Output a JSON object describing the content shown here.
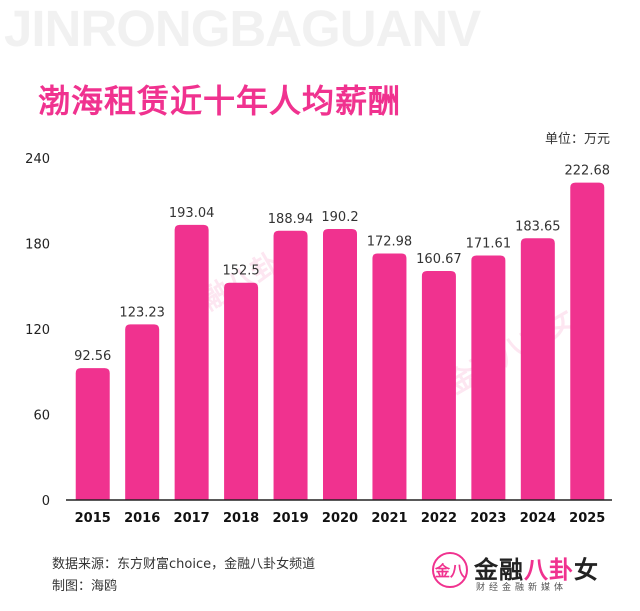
{
  "header": {
    "banner_text": "JINRONGBAGUANV",
    "title": "渤海租赁近十年人均薪酬",
    "unit": "单位：万元"
  },
  "footer": {
    "source": "数据来源：东方财富choice，金融八卦女频道",
    "author": "制图：海鸥"
  },
  "logo": {
    "mark": "金八",
    "name_part1": "金融",
    "name_part2": "八卦",
    "name_part3": "女",
    "subtitle": "财经金融新媒体"
  },
  "watermarks": [
    "金融八卦女",
    "金融八卦女"
  ],
  "colors": {
    "bar": "#f0328f",
    "title": "#f0328f",
    "axis": "#222222"
  },
  "chart_data": {
    "type": "bar",
    "title": "渤海租赁近十年人均薪酬",
    "ylabel": "单位：万元",
    "xlabel": "",
    "categories": [
      "2015",
      "2016",
      "2017",
      "2018",
      "2019",
      "2020",
      "2021",
      "2022",
      "2023",
      "2024",
      "2025"
    ],
    "values": [
      92.56,
      123.23,
      193.04,
      152.5,
      188.94,
      190.2,
      172.98,
      160.67,
      171.61,
      183.65,
      222.68
    ],
    "value_labels": [
      "92.56",
      "123.23",
      "193.04",
      "152.5",
      "188.94",
      "190.2",
      "172.98",
      "160.67",
      "171.61",
      "183.65",
      "222.68"
    ],
    "yticks": [
      "0",
      "60",
      "120",
      "180",
      "240"
    ],
    "ylim": [
      0,
      240
    ],
    "grid": false,
    "legend": "none"
  }
}
